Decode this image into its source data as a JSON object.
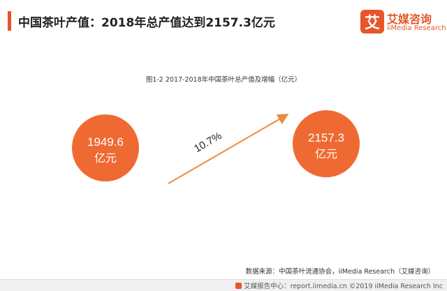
{
  "header": {
    "title": "中国茶叶产值：2018年总产值达到2157.3亿元"
  },
  "logo": {
    "glyph": "艾",
    "cn": "艾媒咨询",
    "en": "iiMedia Research"
  },
  "colors": {
    "accent": "#e8552a",
    "bubble": "#ef6a32",
    "arrow": "#f08a3a"
  },
  "chart_data": {
    "type": "bubble-comparison",
    "title": "图1-2 2017-2018年中国茶叶总产值及增幅（亿元）",
    "points": [
      {
        "value": "1949.6",
        "unit": "亿元"
      },
      {
        "value": "2157.3",
        "unit": "亿元"
      }
    ],
    "growth_label": "10.7%"
  },
  "source": "数据来源：中国茶叶流通协会，iiMedia Research（艾媒咨询）",
  "footer": {
    "text": "艾媒报告中心：report.iimedia.cn ©2019 iiMedia Research Inc"
  }
}
